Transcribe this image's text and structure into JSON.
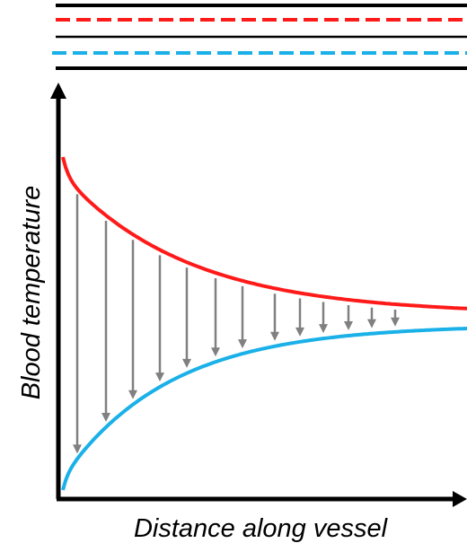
{
  "diagram": {
    "x_axis_label": "Distance along vessel",
    "y_axis_label": "Blood temperature",
    "colors": {
      "vessel_wall": "#000000",
      "warm_flow": "#ff1a1a",
      "cool_flow": "#1ab0e8",
      "heat_transfer_arrow": "#808080",
      "axis": "#000000"
    },
    "curves": {
      "warm": {
        "name": "",
        "direction": "decreasing"
      },
      "cool": {
        "name": "",
        "direction": "increasing"
      }
    },
    "heat_transfer_arrows_count": 13
  }
}
